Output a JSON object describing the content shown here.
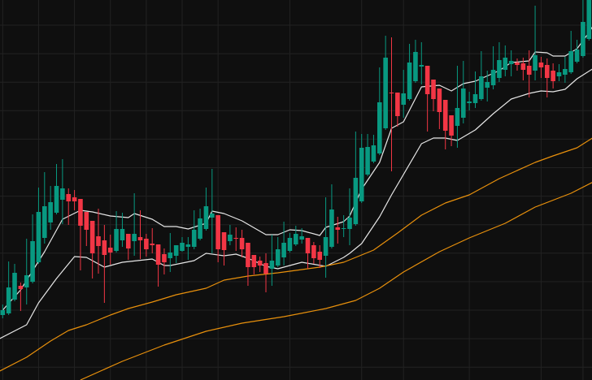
{
  "chart_data": {
    "type": "candlestick",
    "title": "",
    "xlabel": "",
    "ylabel": "",
    "ylim": [
      0,
      468
    ],
    "grid": true,
    "colors": {
      "background": "#0f0f0f",
      "grid": "#222222",
      "up": "#089981",
      "down": "#f23645",
      "band": "#e6e6e6",
      "moving_average": "#e8900c"
    },
    "candles_ohlc": [
      [
        80,
        93,
        76,
        86
      ],
      [
        82,
        146,
        80,
        114
      ],
      [
        99,
        143,
        97,
        132
      ],
      [
        116,
        120,
        85,
        112
      ],
      [
        114,
        174,
        93,
        129
      ],
      [
        121,
        204,
        119,
        171
      ],
      [
        145,
        237,
        143,
        207
      ],
      [
        175,
        256,
        168,
        214
      ],
      [
        194,
        239,
        185,
        219
      ],
      [
        206,
        266,
        204,
        239
      ],
      [
        222,
        272,
        192,
        236
      ],
      [
        229,
        236,
        191,
        220
      ],
      [
        225,
        234,
        209,
        220
      ],
      [
        223,
        223,
        135,
        190
      ],
      [
        207,
        207,
        165,
        185
      ],
      [
        196,
        196,
        125,
        156
      ],
      [
        177,
        211,
        131,
        165
      ],
      [
        172,
        191,
        95,
        154
      ],
      [
        163,
        179,
        142,
        157
      ],
      [
        159,
        208,
        157,
        186
      ],
      [
        172,
        206,
        164,
        186
      ],
      [
        180,
        180,
        148,
        162
      ],
      [
        171,
        230,
        153,
        180
      ],
      [
        176,
        209,
        149,
        172
      ],
      [
        174,
        180,
        152,
        161
      ],
      [
        168,
        187,
        156,
        166
      ],
      [
        167,
        167,
        115,
        142
      ],
      [
        155,
        162,
        130,
        145
      ],
      [
        150,
        181,
        133,
        157
      ],
      [
        153,
        166,
        144,
        166
      ],
      [
        159,
        176,
        158,
        169
      ],
      [
        164,
        176,
        148,
        167
      ],
      [
        164,
        209,
        161,
        185
      ],
      [
        174,
        211,
        172,
        199
      ],
      [
        186,
        237,
        184,
        214
      ],
      [
        200,
        260,
        156,
        205
      ],
      [
        203,
        203,
        145,
        161
      ],
      [
        182,
        182,
        141,
        160
      ],
      [
        171,
        191,
        166,
        179
      ],
      [
        175,
        188,
        159,
        174
      ],
      [
        175,
        185,
        151,
        161
      ],
      [
        169,
        169,
        116,
        139
      ],
      [
        154,
        154,
        130,
        139
      ],
      [
        147,
        152,
        133,
        141
      ],
      [
        144,
        156,
        108,
        131
      ],
      [
        137,
        179,
        116,
        147
      ],
      [
        141,
        176,
        139,
        161
      ],
      [
        151,
        195,
        141,
        169
      ],
      [
        159,
        181,
        157,
        175
      ],
      [
        167,
        190,
        165,
        180
      ],
      [
        173,
        187,
        168,
        177
      ],
      [
        175,
        175,
        137,
        156
      ],
      [
        166,
        170,
        143,
        150
      ],
      [
        158,
        166,
        138,
        148
      ],
      [
        153,
        225,
        126,
        176
      ],
      [
        164,
        241,
        162,
        210
      ],
      [
        188,
        201,
        168,
        185
      ],
      [
        186,
        203,
        176,
        187
      ],
      [
        186,
        236,
        166,
        200
      ],
      [
        192,
        306,
        190,
        249
      ],
      [
        220,
        303,
        218,
        286
      ],
      [
        253,
        303,
        251,
        287
      ],
      [
        269,
        302,
        267,
        289
      ],
      [
        279,
        385,
        277,
        342
      ],
      [
        310,
        424,
        308,
        397
      ],
      [
        354,
        422,
        257,
        353
      ],
      [
        354,
        354,
        312,
        325
      ],
      [
        339,
        382,
        323,
        353
      ],
      [
        346,
        414,
        344,
        391
      ],
      [
        368,
        419,
        366,
        404
      ],
      [
        386,
        416,
        364,
        388
      ],
      [
        387,
        387,
        306,
        352
      ],
      [
        370,
        370,
        331,
        346
      ],
      [
        359,
        359,
        309,
        330
      ],
      [
        345,
        345,
        284,
        307
      ],
      [
        326,
        326,
        288,
        301
      ],
      [
        313,
        387,
        286,
        335
      ],
      [
        323,
        393,
        316,
        359
      ],
      [
        341,
        355,
        332,
        343
      ],
      [
        341,
        380,
        335,
        352
      ],
      [
        346,
        405,
        344,
        374
      ],
      [
        360,
        381,
        343,
        367
      ],
      [
        363,
        411,
        358,
        382
      ],
      [
        372,
        416,
        367,
        394
      ],
      [
        382,
        412,
        374,
        397
      ],
      [
        389,
        406,
        374,
        393
      ],
      [
        391,
        396,
        381,
        388
      ],
      [
        390,
        397,
        369,
        382
      ],
      [
        387,
        406,
        348,
        376
      ],
      [
        381,
        461,
        369,
        400
      ],
      [
        391,
        398,
        372,
        385
      ],
      [
        388,
        396,
        348,
        372
      ],
      [
        381,
        390,
        359,
        368
      ],
      [
        374,
        389,
        368,
        379
      ],
      [
        376,
        398,
        366,
        383
      ],
      [
        379,
        430,
        377,
        405
      ],
      [
        392,
        419,
        390,
        407
      ],
      [
        399,
        468,
        397,
        441
      ],
      [
        420,
        468,
        418,
        468
      ]
    ],
    "lines": [
      {
        "role": "upper-band",
        "color_key": "band",
        "points": [
          [
            0,
            86
          ],
          [
            3,
            111
          ],
          [
            7,
            158
          ],
          [
            10,
            198
          ],
          [
            13,
            209
          ],
          [
            15,
            207
          ],
          [
            18,
            202
          ],
          [
            21,
            200
          ],
          [
            22,
            205
          ],
          [
            25,
            198
          ],
          [
            27,
            189
          ],
          [
            29,
            189
          ],
          [
            31,
            186
          ],
          [
            34,
            193
          ],
          [
            35,
            208
          ],
          [
            37,
            205
          ],
          [
            40,
            196
          ],
          [
            44,
            179
          ],
          [
            46,
            179
          ],
          [
            48,
            185
          ],
          [
            50,
            184
          ],
          [
            53,
            178
          ],
          [
            54,
            188
          ],
          [
            57,
            195
          ],
          [
            58,
            202
          ],
          [
            60,
            235
          ],
          [
            63,
            268
          ],
          [
            65,
            310
          ],
          [
            67,
            318
          ],
          [
            70,
            361
          ],
          [
            73,
            363
          ],
          [
            75,
            356
          ],
          [
            77,
            365
          ],
          [
            79,
            368
          ],
          [
            83,
            381
          ],
          [
            85,
            391
          ],
          [
            88,
            393
          ],
          [
            89,
            404
          ],
          [
            91,
            403
          ],
          [
            92,
            399
          ],
          [
            94,
            399
          ],
          [
            96,
            408
          ],
          [
            98,
            428
          ],
          [
            99,
            440
          ]
        ]
      },
      {
        "role": "lower-band",
        "color_key": "band",
        "points": [
          [
            -0.5,
            51
          ],
          [
            4,
            68
          ],
          [
            6,
            95
          ],
          [
            9,
            125
          ],
          [
            12,
            152
          ],
          [
            14,
            151
          ],
          [
            17,
            139
          ],
          [
            20,
            145
          ],
          [
            25,
            149
          ],
          [
            27,
            141
          ],
          [
            28,
            141
          ],
          [
            30,
            144
          ],
          [
            32,
            147
          ],
          [
            34,
            156
          ],
          [
            37,
            153
          ],
          [
            39,
            155
          ],
          [
            41,
            150
          ],
          [
            44,
            140
          ],
          [
            46,
            137
          ],
          [
            48,
            141
          ],
          [
            50,
            145
          ],
          [
            54,
            140
          ],
          [
            57,
            151
          ],
          [
            58,
            156
          ],
          [
            60,
            168
          ],
          [
            63,
            201
          ],
          [
            65,
            228
          ],
          [
            70,
            291
          ],
          [
            72,
            298
          ],
          [
            74,
            298
          ],
          [
            76,
            295
          ],
          [
            79,
            308
          ],
          [
            82,
            328
          ],
          [
            85,
            346
          ],
          [
            88,
            353
          ],
          [
            90,
            356
          ],
          [
            92,
            355
          ],
          [
            94,
            358
          ],
          [
            96,
            371
          ],
          [
            99,
            385
          ]
        ]
      },
      {
        "role": "moving-average-fast",
        "color_key": "moving_average",
        "points": [
          [
            -0.5,
            11
          ],
          [
            4,
            28
          ],
          [
            8,
            48
          ],
          [
            11,
            61
          ],
          [
            14,
            68
          ],
          [
            18,
            80
          ],
          [
            21,
            88
          ],
          [
            25,
            96
          ],
          [
            29,
            105
          ],
          [
            34,
            113
          ],
          [
            37,
            123
          ],
          [
            41,
            128
          ],
          [
            46,
            132
          ],
          [
            50,
            136
          ],
          [
            53,
            139
          ],
          [
            57,
            145
          ],
          [
            59,
            151
          ],
          [
            62,
            160
          ],
          [
            66,
            181
          ],
          [
            70,
            203
          ],
          [
            74,
            218
          ],
          [
            78,
            228
          ],
          [
            83,
            248
          ],
          [
            89,
            268
          ],
          [
            92,
            276
          ],
          [
            96,
            286
          ],
          [
            99,
            300
          ]
        ]
      },
      {
        "role": "moving-average-slow",
        "color_key": "moving_average",
        "points": [
          [
            13,
            0
          ],
          [
            20,
            23
          ],
          [
            27,
            43
          ],
          [
            34,
            60
          ],
          [
            40,
            70
          ],
          [
            47,
            78
          ],
          [
            54,
            88
          ],
          [
            59,
            98
          ],
          [
            63,
            113
          ],
          [
            67,
            133
          ],
          [
            73,
            158
          ],
          [
            78,
            175
          ],
          [
            84,
            193
          ],
          [
            89,
            213
          ],
          [
            95,
            230
          ],
          [
            99,
            245
          ]
        ]
      }
    ]
  }
}
